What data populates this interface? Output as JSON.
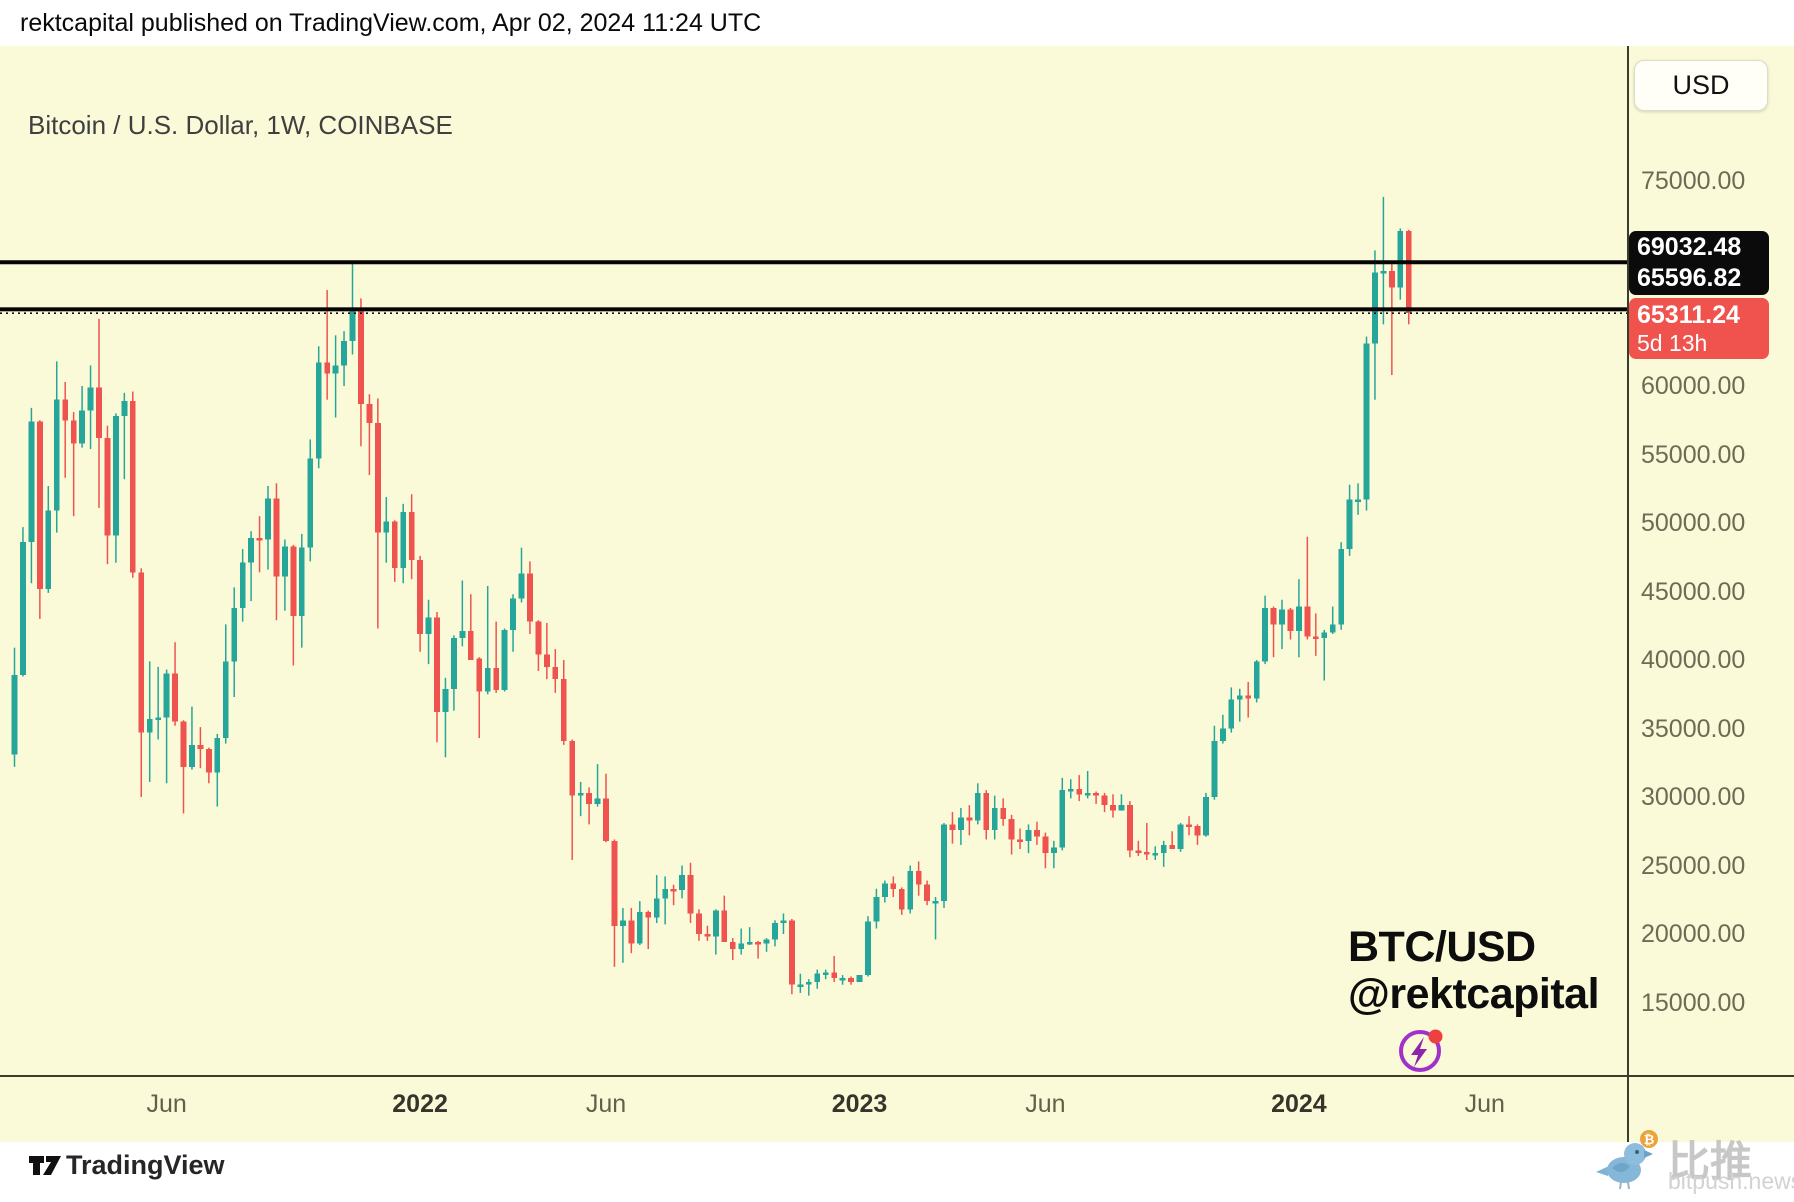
{
  "header": {
    "published_line": "rektcapital published on TradingView.com, Apr 02, 2024 11:24 UTC"
  },
  "chart": {
    "symbol_title": "Bitcoin / U.S. Dollar, 1W, COINBASE",
    "currency_button": "USD",
    "watermark_line1": "BTC/USD",
    "watermark_line2": "@rektcapital",
    "levels": {
      "resistance_1": "69032.48",
      "resistance_2": "65596.82"
    },
    "last_price": {
      "value": "65311.24",
      "countdown": "5d 13h"
    },
    "colors": {
      "background": "#fafad8",
      "up": "#26a69a",
      "down": "#ef5350",
      "level_line": "#050505",
      "badge_black": "#0b0b0b",
      "badge_red": "#f0524e",
      "axis_text": "#6c6c56"
    }
  },
  "x_axis": {
    "labels": [
      {
        "text": "Jun",
        "week": 18,
        "year": false
      },
      {
        "text": "2022",
        "week": 48,
        "year": true
      },
      {
        "text": "Jun",
        "week": 70,
        "year": false
      },
      {
        "text": "2023",
        "week": 100,
        "year": true
      },
      {
        "text": "Jun",
        "week": 122,
        "year": false
      },
      {
        "text": "2024",
        "week": 152,
        "year": true
      },
      {
        "text": "Jun",
        "week": 174,
        "year": false
      }
    ]
  },
  "y_axis": {
    "tick_values": [
      75000,
      60000,
      55000,
      50000,
      45000,
      40000,
      35000,
      30000,
      25000,
      20000,
      15000
    ]
  },
  "footer": {
    "tradingview": "TradingView",
    "bitpush_cn": "比推",
    "bitpush_domain": "bitpush.news"
  },
  "chart_data": {
    "type": "candlestick",
    "title": "Bitcoin / U.S. Dollar, 1W, COINBASE",
    "interval": "1W",
    "price_unit": "USD",
    "ohlc_order": [
      "open",
      "high",
      "low",
      "close"
    ],
    "horizontal_lines": [
      69032.48,
      65596.82
    ],
    "current_price_line": 65311.24,
    "ylim_visible": [
      9700,
      84800
    ],
    "grid": false,
    "candles_ohlc": [
      [
        33100,
        40900,
        32200,
        38900
      ],
      [
        38900,
        49700,
        38800,
        48600
      ],
      [
        48600,
        58400,
        45600,
        57400
      ],
      [
        57400,
        57500,
        43000,
        45200
      ],
      [
        45200,
        52700,
        44900,
        50900
      ],
      [
        50900,
        61800,
        49300,
        59000
      ],
      [
        59000,
        60300,
        53300,
        57500
      ],
      [
        57500,
        58100,
        50500,
        55800
      ],
      [
        55800,
        60000,
        55500,
        58200
      ],
      [
        58200,
        61500,
        55400,
        59900
      ],
      [
        59900,
        64900,
        51100,
        56200
      ],
      [
        56200,
        57100,
        47000,
        49100
      ],
      [
        49100,
        58000,
        47100,
        57800
      ],
      [
        57800,
        59500,
        53200,
        58900
      ],
      [
        58900,
        59600,
        46000,
        46400
      ],
      [
        46400,
        46700,
        30000,
        34700
      ],
      [
        34700,
        39900,
        31100,
        35700
      ],
      [
        35700,
        39500,
        34200,
        35800
      ],
      [
        35800,
        39300,
        31000,
        39000
      ],
      [
        39000,
        41300,
        35200,
        35500
      ],
      [
        35500,
        35600,
        28800,
        32200
      ],
      [
        32200,
        36600,
        32000,
        33800
      ],
      [
        33800,
        35100,
        32100,
        33500
      ],
      [
        33500,
        33600,
        31000,
        31800
      ],
      [
        31800,
        34600,
        29300,
        34300
      ],
      [
        34300,
        42600,
        33900,
        39900
      ],
      [
        39900,
        45300,
        37300,
        43800
      ],
      [
        43800,
        48100,
        42800,
        47100
      ],
      [
        47100,
        49400,
        44300,
        48900
      ],
      [
        48900,
        50500,
        46400,
        48800
      ],
      [
        48800,
        52700,
        46600,
        51800
      ],
      [
        51800,
        52900,
        42900,
        46100
      ],
      [
        46100,
        48800,
        43600,
        48300
      ],
      [
        48300,
        48400,
        39600,
        43200
      ],
      [
        43200,
        49200,
        40900,
        48200
      ],
      [
        48200,
        56100,
        47200,
        54700
      ],
      [
        54700,
        62900,
        54000,
        61700
      ],
      [
        61700,
        67000,
        59000,
        60900
      ],
      [
        60900,
        63700,
        57700,
        61500
      ],
      [
        61500,
        64000,
        60000,
        63300
      ],
      [
        63300,
        69000,
        62300,
        65500
      ],
      [
        65500,
        66400,
        55600,
        58700
      ],
      [
        58700,
        59400,
        53500,
        57300
      ],
      [
        57300,
        59100,
        42300,
        49300
      ],
      [
        49300,
        51900,
        47100,
        50100
      ],
      [
        50100,
        50200,
        45700,
        46700
      ],
      [
        46700,
        51400,
        45600,
        50800
      ],
      [
        50800,
        52100,
        45900,
        47300
      ],
      [
        47300,
        47600,
        40600,
        41900
      ],
      [
        41900,
        44400,
        39700,
        43100
      ],
      [
        43100,
        43500,
        34000,
        36200
      ],
      [
        36200,
        38700,
        32900,
        37900
      ],
      [
        37900,
        41800,
        36300,
        41600
      ],
      [
        41600,
        45800,
        41000,
        42100
      ],
      [
        42100,
        44800,
        40100,
        40000
      ],
      [
        40100,
        40200,
        34300,
        37700
      ],
      [
        37700,
        45400,
        37500,
        39400
      ],
      [
        39400,
        42800,
        37600,
        37800
      ],
      [
        37800,
        42300,
        37700,
        42200
      ],
      [
        42200,
        44800,
        40600,
        44500
      ],
      [
        44500,
        48200,
        44200,
        46300
      ],
      [
        46300,
        47200,
        41900,
        42800
      ],
      [
        42800,
        42900,
        39200,
        40400
      ],
      [
        40400,
        42700,
        38600,
        39500
      ],
      [
        39500,
        40800,
        37600,
        38600
      ],
      [
        38600,
        40000,
        33800,
        34100
      ],
      [
        34100,
        34200,
        25400,
        30100
      ],
      [
        30100,
        31100,
        28600,
        30300
      ],
      [
        30300,
        30700,
        28000,
        29500
      ],
      [
        29500,
        32400,
        29300,
        29900
      ],
      [
        29900,
        31700,
        26700,
        26800
      ],
      [
        26800,
        26900,
        17600,
        20600
      ],
      [
        20600,
        21900,
        17900,
        21000
      ],
      [
        21000,
        21900,
        18600,
        19300
      ],
      [
        19300,
        22400,
        19200,
        21600
      ],
      [
        21600,
        21700,
        18900,
        21200
      ],
      [
        21200,
        24300,
        20800,
        22600
      ],
      [
        22600,
        24200,
        20700,
        23300
      ],
      [
        23300,
        23600,
        22100,
        23200
      ],
      [
        23200,
        25000,
        22600,
        24300
      ],
      [
        24300,
        25200,
        20800,
        21500
      ],
      [
        21500,
        21800,
        19500,
        20000
      ],
      [
        20000,
        20600,
        19500,
        19800
      ],
      [
        19800,
        21800,
        18500,
        21700
      ],
      [
        21700,
        22800,
        19500,
        19400
      ],
      [
        19400,
        19700,
        18100,
        18900
      ],
      [
        18900,
        20400,
        18500,
        19300
      ],
      [
        19300,
        20500,
        19200,
        19400
      ],
      [
        19400,
        19500,
        18200,
        19300
      ],
      [
        19300,
        19700,
        18700,
        19600
      ],
      [
        19600,
        21000,
        19100,
        20800
      ],
      [
        20800,
        21500,
        20000,
        21000
      ],
      [
        21000,
        21100,
        15600,
        16300
      ],
      [
        16300,
        17100,
        15700,
        16300
      ],
      [
        16300,
        16700,
        15500,
        16500
      ],
      [
        16500,
        17400,
        16000,
        17100
      ],
      [
        17100,
        17400,
        16700,
        17200
      ],
      [
        17200,
        18400,
        16500,
        16800
      ],
      [
        16800,
        17000,
        16300,
        16800
      ],
      [
        16800,
        16900,
        16300,
        16500
      ],
      [
        16500,
        17000,
        16500,
        17000
      ],
      [
        17000,
        21300,
        16900,
        20900
      ],
      [
        20900,
        23300,
        20400,
        22700
      ],
      [
        22700,
        23900,
        22300,
        23700
      ],
      [
        23700,
        24200,
        22700,
        23300
      ],
      [
        23300,
        23400,
        21400,
        21800
      ],
      [
        21800,
        25000,
        21500,
        24600
      ],
      [
        24600,
        25300,
        22800,
        23600
      ],
      [
        23600,
        23900,
        22100,
        22400
      ],
      [
        22400,
        22700,
        19600,
        22400
      ],
      [
        22400,
        28100,
        21900,
        28000
      ],
      [
        28000,
        28900,
        26600,
        27600
      ],
      [
        27600,
        29200,
        26500,
        28500
      ],
      [
        28500,
        29400,
        27200,
        28300
      ],
      [
        28300,
        31000,
        28000,
        30300
      ],
      [
        30300,
        30500,
        26900,
        27600
      ],
      [
        27600,
        30100,
        26900,
        29200
      ],
      [
        29200,
        29900,
        27900,
        28400
      ],
      [
        28400,
        28700,
        25800,
        26900
      ],
      [
        26900,
        27700,
        26200,
        26800
      ],
      [
        26800,
        28000,
        25900,
        27600
      ],
      [
        27600,
        28200,
        26500,
        27100
      ],
      [
        27100,
        27400,
        24800,
        25900
      ],
      [
        25900,
        26800,
        24800,
        26300
      ],
      [
        26300,
        31400,
        26100,
        30500
      ],
      [
        30500,
        31300,
        29900,
        30600
      ],
      [
        30600,
        31600,
        29700,
        30200
      ],
      [
        30200,
        31900,
        29900,
        30300
      ],
      [
        30300,
        30400,
        29500,
        30100
      ],
      [
        30100,
        30300,
        28900,
        29400
      ],
      [
        29400,
        30200,
        28500,
        29000
      ],
      [
        29000,
        30200,
        29000,
        29400
      ],
      [
        29400,
        29700,
        25600,
        26100
      ],
      [
        26100,
        26800,
        25700,
        26000
      ],
      [
        26000,
        28100,
        25400,
        25900
      ],
      [
        25900,
        26400,
        25400,
        25900
      ],
      [
        25900,
        26800,
        24900,
        26500
      ],
      [
        26500,
        27500,
        26200,
        26200
      ],
      [
        26200,
        28100,
        26000,
        28000
      ],
      [
        28000,
        28600,
        27200,
        27900
      ],
      [
        27900,
        28000,
        26500,
        27200
      ],
      [
        27200,
        30300,
        27100,
        30000
      ],
      [
        30000,
        35200,
        29800,
        34100
      ],
      [
        34100,
        36000,
        33900,
        35000
      ],
      [
        35000,
        38000,
        34700,
        37100
      ],
      [
        37100,
        37900,
        35500,
        37400
      ],
      [
        37400,
        38400,
        35800,
        37200
      ],
      [
        37200,
        40000,
        36900,
        39900
      ],
      [
        39900,
        44700,
        39700,
        43800
      ],
      [
        43800,
        43900,
        40200,
        42600
      ],
      [
        42600,
        44400,
        40800,
        43700
      ],
      [
        43700,
        43800,
        41500,
        42100
      ],
      [
        42100,
        45900,
        40200,
        43900
      ],
      [
        43900,
        49000,
        41500,
        41700
      ],
      [
        41700,
        43400,
        40300,
        41600
      ],
      [
        41600,
        42200,
        38500,
        42000
      ],
      [
        42000,
        43900,
        41900,
        42600
      ],
      [
        42600,
        48600,
        42200,
        48100
      ],
      [
        48100,
        52800,
        47600,
        51700
      ],
      [
        51700,
        52900,
        50600,
        51700
      ],
      [
        51700,
        63600,
        50900,
        63100
      ],
      [
        63100,
        69900,
        59000,
        68300
      ],
      [
        68300,
        73800,
        64500,
        68400
      ],
      [
        68400,
        68900,
        60800,
        67200
      ],
      [
        67200,
        71500,
        66300,
        71300
      ],
      [
        71300,
        71400,
        64500,
        65311
      ]
    ]
  }
}
